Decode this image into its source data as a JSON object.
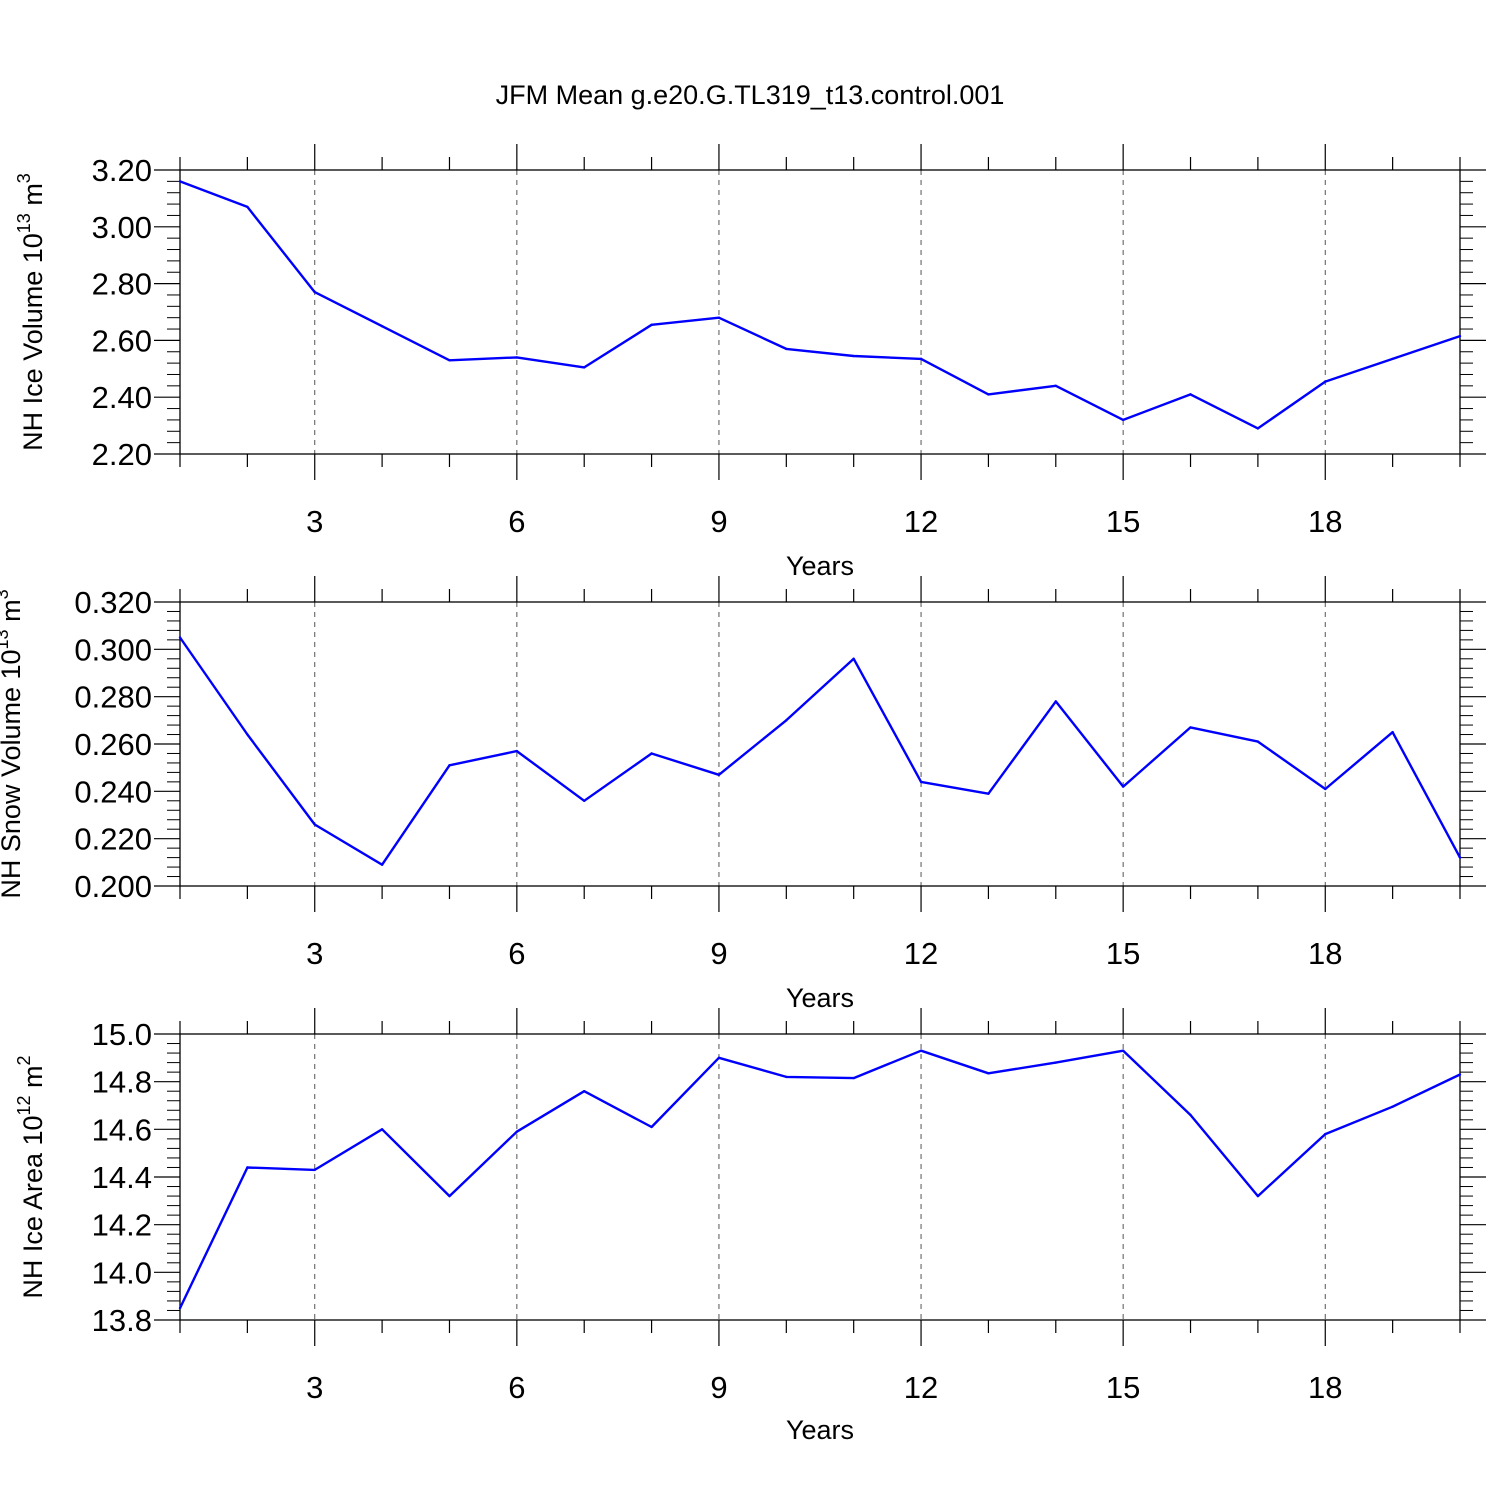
{
  "title": "JFM Mean g.e20.G.TL319_t13.control.001",
  "colors": {
    "line": "#0000ff",
    "axis": "#000000",
    "grid": "#555555"
  },
  "chart_data": [
    {
      "type": "line",
      "xlabel": "Years",
      "ylabel_parts": {
        "base": "NH Ice Volume 10",
        "exp": "13",
        "unit": " m",
        "unit_exp": "3"
      },
      "xlim": [
        1,
        20
      ],
      "ylim": [
        2.2,
        3.2
      ],
      "xticks": [
        3,
        6,
        9,
        12,
        15,
        18
      ],
      "xtick_labels": [
        "3",
        "6",
        "9",
        "12",
        "15",
        "18"
      ],
      "yticks": [
        2.2,
        2.4,
        2.6,
        2.8,
        3.0,
        3.2
      ],
      "ytick_labels": [
        "2.20",
        "2.40",
        "2.60",
        "2.80",
        "3.00",
        "3.20"
      ],
      "grid": "vertical dashed",
      "series": [
        {
          "x": [
            1,
            2,
            3,
            4,
            5,
            6,
            7,
            8,
            9,
            10,
            11,
            12,
            13,
            14,
            15,
            16,
            17,
            18,
            19,
            20
          ],
          "values": [
            3.16,
            3.07,
            2.77,
            2.65,
            2.53,
            2.54,
            2.505,
            2.655,
            2.68,
            2.57,
            2.545,
            2.535,
            2.41,
            2.44,
            2.32,
            2.41,
            2.29,
            2.455,
            2.535,
            2.615
          ]
        }
      ]
    },
    {
      "type": "line",
      "xlabel": "Years",
      "ylabel_parts": {
        "base": "NH Snow Volume 10",
        "exp": "13",
        "unit": " m",
        "unit_exp": "3"
      },
      "xlim": [
        1,
        20
      ],
      "ylim": [
        0.2,
        0.32
      ],
      "xticks": [
        3,
        6,
        9,
        12,
        15,
        18
      ],
      "xtick_labels": [
        "3",
        "6",
        "9",
        "12",
        "15",
        "18"
      ],
      "yticks": [
        0.2,
        0.22,
        0.24,
        0.26,
        0.28,
        0.3,
        0.32
      ],
      "ytick_labels": [
        "0.200",
        "0.220",
        "0.240",
        "0.260",
        "0.280",
        "0.300",
        "0.320"
      ],
      "grid": "vertical dashed",
      "series": [
        {
          "x": [
            1,
            2,
            3,
            4,
            5,
            6,
            7,
            8,
            9,
            10,
            11,
            12,
            13,
            14,
            15,
            16,
            17,
            18,
            19,
            20
          ],
          "values": [
            0.305,
            0.264,
            0.226,
            0.209,
            0.251,
            0.257,
            0.236,
            0.256,
            0.247,
            0.27,
            0.296,
            0.244,
            0.239,
            0.278,
            0.242,
            0.267,
            0.261,
            0.241,
            0.265,
            0.212
          ]
        }
      ]
    },
    {
      "type": "line",
      "xlabel": "Years",
      "ylabel_parts": {
        "base": "NH Ice Area 10",
        "exp": "12",
        "unit": " m",
        "unit_exp": "2"
      },
      "xlim": [
        1,
        20
      ],
      "ylim": [
        13.8,
        15.0
      ],
      "xticks": [
        3,
        6,
        9,
        12,
        15,
        18
      ],
      "xtick_labels": [
        "3",
        "6",
        "9",
        "12",
        "15",
        "18"
      ],
      "yticks": [
        13.8,
        14.0,
        14.2,
        14.4,
        14.6,
        14.8,
        15.0
      ],
      "ytick_labels": [
        "13.8",
        "14.0",
        "14.2",
        "14.4",
        "14.6",
        "14.8",
        "15.0"
      ],
      "grid": "vertical dashed",
      "series": [
        {
          "x": [
            1,
            2,
            3,
            4,
            5,
            6,
            7,
            8,
            9,
            10,
            11,
            12,
            13,
            14,
            15,
            16,
            17,
            18,
            19,
            20
          ],
          "values": [
            13.85,
            14.44,
            14.43,
            14.6,
            14.32,
            14.59,
            14.76,
            14.61,
            14.9,
            14.82,
            14.815,
            14.93,
            14.835,
            14.88,
            14.93,
            14.66,
            14.32,
            14.58,
            14.695,
            14.83
          ]
        }
      ]
    }
  ]
}
